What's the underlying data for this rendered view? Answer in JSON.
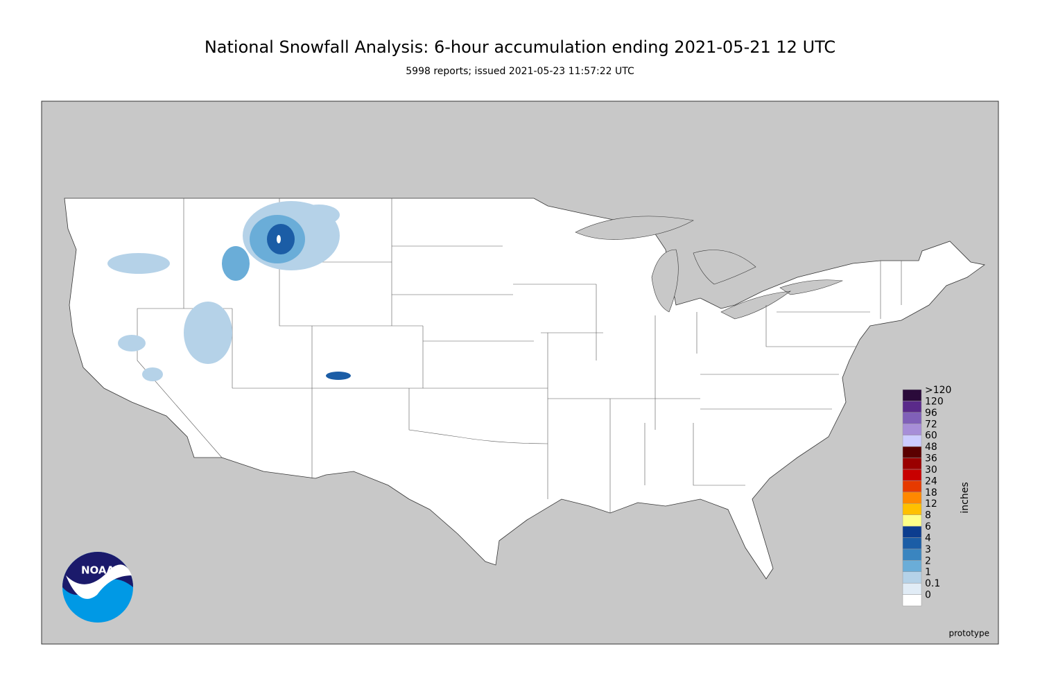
{
  "header": {
    "title": "National Snowfall Analysis: 6-hour accumulation ending 2021-05-21 12 UTC",
    "subtitle": "5998 reports; issued 2021-05-23 11:57:22 UTC"
  },
  "legend": {
    "title": "inches",
    "labels": [
      "0",
      "0.1",
      "1",
      "2",
      "3",
      "4",
      "6",
      "8",
      "12",
      "18",
      "24",
      "30",
      "36",
      "48",
      "60",
      "72",
      "96",
      "120",
      ">120"
    ],
    "colors": [
      "#ffffff",
      "#e1ecf6",
      "#b5d2e8",
      "#6aadd8",
      "#3a85c0",
      "#1b5da6",
      "#0c3d8f",
      "#ffff88",
      "#ffc000",
      "#ff8800",
      "#e63a00",
      "#c80000",
      "#9a0000",
      "#5a0000",
      "#ccccff",
      "#a78ed8",
      "#8060b8",
      "#5a2a8a",
      "#2a0a3a"
    ]
  },
  "logo": {
    "text": "NOAA"
  },
  "footer": {
    "note": "prototype"
  }
}
